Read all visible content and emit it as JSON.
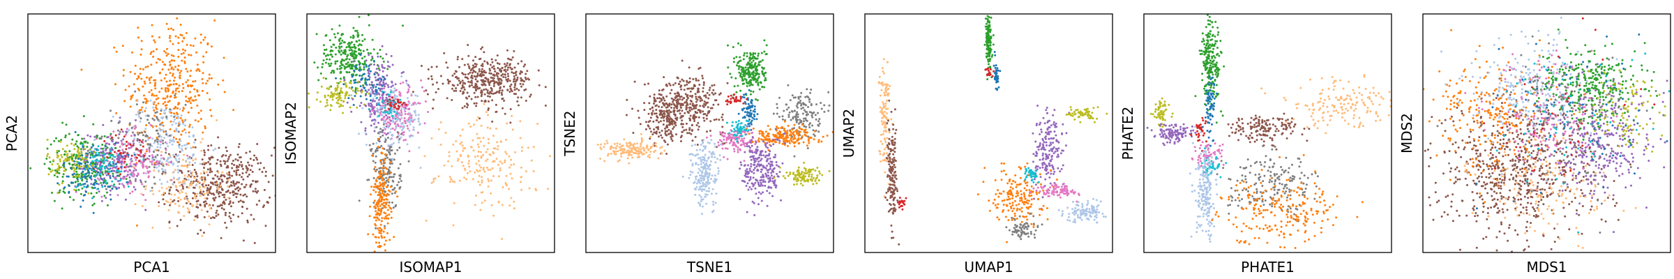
{
  "chart_data": [
    {
      "type": "scatter",
      "xlabel": "PCA1",
      "ylabel": "PCA2",
      "xlim": [
        0,
        1
      ],
      "ylim": [
        0,
        1
      ],
      "grid": false,
      "ticks": false,
      "clusters": [
        {
          "color": "#ff7f0e",
          "x": 0.58,
          "y": 0.7,
          "sx": 0.09,
          "sy": 0.14,
          "n": 360
        },
        {
          "color": "#8c564b",
          "x": 0.78,
          "y": 0.28,
          "sx": 0.1,
          "sy": 0.08,
          "n": 420
        },
        {
          "color": "#ffbb78",
          "x": 0.63,
          "y": 0.28,
          "sx": 0.08,
          "sy": 0.08,
          "n": 140
        },
        {
          "color": "#aec7e8",
          "x": 0.55,
          "y": 0.45,
          "sx": 0.09,
          "sy": 0.09,
          "n": 200
        },
        {
          "color": "#7f7f7f",
          "x": 0.48,
          "y": 0.48,
          "sx": 0.08,
          "sy": 0.09,
          "n": 120
        },
        {
          "color": "#e377c2",
          "x": 0.42,
          "y": 0.38,
          "sx": 0.07,
          "sy": 0.06,
          "n": 150
        },
        {
          "color": "#9467bd",
          "x": 0.33,
          "y": 0.38,
          "sx": 0.07,
          "sy": 0.07,
          "n": 200
        },
        {
          "color": "#2ca02c",
          "x": 0.22,
          "y": 0.37,
          "sx": 0.07,
          "sy": 0.07,
          "n": 220
        },
        {
          "color": "#bcbd22",
          "x": 0.18,
          "y": 0.38,
          "sx": 0.05,
          "sy": 0.05,
          "n": 110
        },
        {
          "color": "#1f77b4",
          "x": 0.26,
          "y": 0.34,
          "sx": 0.06,
          "sy": 0.06,
          "n": 110
        },
        {
          "color": "#17becf",
          "x": 0.3,
          "y": 0.36,
          "sx": 0.06,
          "sy": 0.05,
          "n": 80
        },
        {
          "color": "#d62728",
          "x": 0.4,
          "y": 0.42,
          "sx": 0.05,
          "sy": 0.04,
          "n": 40
        }
      ]
    },
    {
      "type": "scatter",
      "xlabel": "ISOMAP1",
      "ylabel": "ISOMAP2",
      "xlim": [
        0,
        1
      ],
      "ylim": [
        0,
        1
      ],
      "grid": false,
      "ticks": false,
      "clusters": [
        {
          "color": "#2ca02c",
          "x": 0.17,
          "y": 0.82,
          "sx": 0.06,
          "sy": 0.06,
          "n": 260
        },
        {
          "color": "#bcbd22",
          "x": 0.13,
          "y": 0.66,
          "sx": 0.04,
          "sy": 0.03,
          "n": 100
        },
        {
          "color": "#9467bd",
          "x": 0.29,
          "y": 0.66,
          "sx": 0.05,
          "sy": 0.08,
          "n": 200
        },
        {
          "color": "#e377c2",
          "x": 0.37,
          "y": 0.58,
          "sx": 0.05,
          "sy": 0.05,
          "n": 150
        },
        {
          "color": "#aec7e8",
          "x": 0.36,
          "y": 0.56,
          "sx": 0.06,
          "sy": 0.06,
          "n": 140
        },
        {
          "color": "#8c564b",
          "x": 0.73,
          "y": 0.72,
          "sx": 0.09,
          "sy": 0.05,
          "n": 400
        },
        {
          "color": "#ffbb78",
          "x": 0.72,
          "y": 0.38,
          "sx": 0.1,
          "sy": 0.1,
          "n": 200
        },
        {
          "color": "#7f7f7f",
          "x": 0.32,
          "y": 0.35,
          "sx": 0.03,
          "sy": 0.09,
          "n": 170
        },
        {
          "color": "#ff7f0e",
          "x": 0.3,
          "y": 0.2,
          "sx": 0.02,
          "sy": 0.1,
          "n": 200
        },
        {
          "color": "#1f77b4",
          "x": 0.24,
          "y": 0.72,
          "sx": 0.04,
          "sy": 0.04,
          "n": 60
        },
        {
          "color": "#17becf",
          "x": 0.33,
          "y": 0.62,
          "sx": 0.03,
          "sy": 0.03,
          "n": 40
        },
        {
          "color": "#d62728",
          "x": 0.36,
          "y": 0.62,
          "sx": 0.02,
          "sy": 0.02,
          "n": 25
        }
      ]
    },
    {
      "type": "scatter",
      "xlabel": "TSNE1",
      "ylabel": "TSNE2",
      "xlim": [
        0,
        1
      ],
      "ylim": [
        0,
        1
      ],
      "grid": false,
      "ticks": false,
      "clusters": [
        {
          "color": "#8c564b",
          "x": 0.4,
          "y": 0.62,
          "sx": 0.08,
          "sy": 0.06,
          "n": 380
        },
        {
          "color": "#8c564b",
          "x": 0.32,
          "y": 0.55,
          "sx": 0.04,
          "sy": 0.05,
          "n": 120
        },
        {
          "color": "#ffbb78",
          "x": 0.18,
          "y": 0.43,
          "sx": 0.06,
          "sy": 0.02,
          "n": 160
        },
        {
          "color": "#2ca02c",
          "x": 0.67,
          "y": 0.76,
          "sx": 0.03,
          "sy": 0.05,
          "n": 220
        },
        {
          "color": "#1f77b4",
          "x": 0.66,
          "y": 0.59,
          "sx": 0.015,
          "sy": 0.04,
          "n": 70
        },
        {
          "color": "#d62728",
          "x": 0.6,
          "y": 0.64,
          "sx": 0.02,
          "sy": 0.01,
          "n": 30
        },
        {
          "color": "#7f7f7f",
          "x": 0.87,
          "y": 0.58,
          "sx": 0.04,
          "sy": 0.05,
          "n": 150
        },
        {
          "color": "#ff7f0e",
          "x": 0.79,
          "y": 0.49,
          "sx": 0.07,
          "sy": 0.02,
          "n": 200
        },
        {
          "color": "#e377c2",
          "x": 0.6,
          "y": 0.47,
          "sx": 0.04,
          "sy": 0.025,
          "n": 120
        },
        {
          "color": "#17becf",
          "x": 0.62,
          "y": 0.52,
          "sx": 0.02,
          "sy": 0.02,
          "n": 50
        },
        {
          "color": "#aec7e8",
          "x": 0.48,
          "y": 0.33,
          "sx": 0.03,
          "sy": 0.07,
          "n": 200
        },
        {
          "color": "#9467bd",
          "x": 0.71,
          "y": 0.35,
          "sx": 0.04,
          "sy": 0.07,
          "n": 240
        },
        {
          "color": "#bcbd22",
          "x": 0.88,
          "y": 0.32,
          "sx": 0.04,
          "sy": 0.02,
          "n": 100
        }
      ]
    },
    {
      "type": "scatter",
      "xlabel": "UMAP1",
      "ylabel": "UMAP2",
      "xlim": [
        0,
        1
      ],
      "ylim": [
        0,
        1
      ],
      "grid": false,
      "ticks": false,
      "clusters": [
        {
          "color": "#2ca02c",
          "x": 0.5,
          "y": 0.88,
          "sx": 0.006,
          "sy": 0.06,
          "n": 150
        },
        {
          "color": "#1f77b4",
          "x": 0.53,
          "y": 0.74,
          "sx": 0.005,
          "sy": 0.03,
          "n": 40
        },
        {
          "color": "#d62728",
          "x": 0.5,
          "y": 0.76,
          "sx": 0.006,
          "sy": 0.01,
          "n": 20
        },
        {
          "color": "#ffbb78",
          "x": 0.08,
          "y": 0.58,
          "sx": 0.01,
          "sy": 0.12,
          "n": 110
        },
        {
          "color": "#8c564b",
          "x": 0.11,
          "y": 0.32,
          "sx": 0.01,
          "sy": 0.1,
          "n": 160
        },
        {
          "color": "#d62728",
          "x": 0.15,
          "y": 0.2,
          "sx": 0.01,
          "sy": 0.01,
          "n": 20
        },
        {
          "color": "#9467bd",
          "x": 0.74,
          "y": 0.43,
          "sx": 0.03,
          "sy": 0.08,
          "n": 180
        },
        {
          "color": "#bcbd22",
          "x": 0.88,
          "y": 0.58,
          "sx": 0.03,
          "sy": 0.015,
          "n": 60
        },
        {
          "color": "#ff7f0e",
          "x": 0.62,
          "y": 0.24,
          "sx": 0.05,
          "sy": 0.06,
          "n": 180
        },
        {
          "color": "#7f7f7f",
          "x": 0.64,
          "y": 0.1,
          "sx": 0.03,
          "sy": 0.02,
          "n": 70
        },
        {
          "color": "#e377c2",
          "x": 0.78,
          "y": 0.26,
          "sx": 0.04,
          "sy": 0.015,
          "n": 80
        },
        {
          "color": "#aec7e8",
          "x": 0.89,
          "y": 0.17,
          "sx": 0.04,
          "sy": 0.02,
          "n": 110
        },
        {
          "color": "#17becf",
          "x": 0.67,
          "y": 0.33,
          "sx": 0.02,
          "sy": 0.02,
          "n": 40
        }
      ]
    },
    {
      "type": "scatter",
      "xlabel": "PHATE1",
      "ylabel": "PHATE2",
      "xlim": [
        0,
        1
      ],
      "ylim": [
        0,
        1
      ],
      "grid": false,
      "ticks": false,
      "clusters": [
        {
          "color": "#2ca02c",
          "x": 0.27,
          "y": 0.8,
          "sx": 0.02,
          "sy": 0.09,
          "n": 220
        },
        {
          "color": "#1f77b4",
          "x": 0.27,
          "y": 0.62,
          "sx": 0.01,
          "sy": 0.06,
          "n": 70
        },
        {
          "color": "#bcbd22",
          "x": 0.07,
          "y": 0.58,
          "sx": 0.015,
          "sy": 0.03,
          "n": 60
        },
        {
          "color": "#9467bd",
          "x": 0.12,
          "y": 0.5,
          "sx": 0.04,
          "sy": 0.02,
          "n": 110
        },
        {
          "color": "#8c564b",
          "x": 0.48,
          "y": 0.52,
          "sx": 0.07,
          "sy": 0.03,
          "n": 150
        },
        {
          "color": "#ffbb78",
          "x": 0.8,
          "y": 0.62,
          "sx": 0.12,
          "sy": 0.05,
          "n": 160
        },
        {
          "color": "#e377c2",
          "x": 0.26,
          "y": 0.4,
          "sx": 0.03,
          "sy": 0.03,
          "n": 70
        },
        {
          "color": "#17becf",
          "x": 0.27,
          "y": 0.36,
          "sx": 0.02,
          "sy": 0.02,
          "n": 40
        },
        {
          "color": "#d62728",
          "x": 0.23,
          "y": 0.5,
          "sx": 0.015,
          "sy": 0.03,
          "n": 30
        },
        {
          "color": "#aec7e8",
          "x": 0.25,
          "y": 0.24,
          "sx": 0.02,
          "sy": 0.09,
          "n": 180
        },
        {
          "color": "#7f7f7f",
          "x": 0.52,
          "y": 0.28,
          "sx": 0.09,
          "sy": 0.06,
          "n": 180
        },
        {
          "color": "#ff7f0e",
          "x": 0.55,
          "y": 0.18,
          "sx": 0.12,
          "sy": 0.07,
          "n": 220
        }
      ]
    },
    {
      "type": "scatter",
      "xlabel": "MDS1",
      "ylabel": "MDS2",
      "xlim": [
        0,
        1
      ],
      "ylim": [
        0,
        1
      ],
      "grid": false,
      "ticks": false,
      "clusters": [
        {
          "color": "#8c564b",
          "x": 0.38,
          "y": 0.34,
          "sx": 0.16,
          "sy": 0.14,
          "n": 650
        },
        {
          "color": "#ff7f0e",
          "x": 0.3,
          "y": 0.58,
          "sx": 0.12,
          "sy": 0.12,
          "n": 260
        },
        {
          "color": "#aec7e8",
          "x": 0.45,
          "y": 0.7,
          "sx": 0.12,
          "sy": 0.1,
          "n": 220
        },
        {
          "color": "#2ca02c",
          "x": 0.68,
          "y": 0.7,
          "sx": 0.1,
          "sy": 0.08,
          "n": 300
        },
        {
          "color": "#9467bd",
          "x": 0.72,
          "y": 0.46,
          "sx": 0.11,
          "sy": 0.11,
          "n": 300
        },
        {
          "color": "#bcbd22",
          "x": 0.8,
          "y": 0.6,
          "sx": 0.07,
          "sy": 0.08,
          "n": 100
        },
        {
          "color": "#e377c2",
          "x": 0.52,
          "y": 0.58,
          "sx": 0.12,
          "sy": 0.12,
          "n": 150
        },
        {
          "color": "#7f7f7f",
          "x": 0.55,
          "y": 0.52,
          "sx": 0.14,
          "sy": 0.14,
          "n": 150
        },
        {
          "color": "#ffbb78",
          "x": 0.5,
          "y": 0.26,
          "sx": 0.14,
          "sy": 0.1,
          "n": 140
        },
        {
          "color": "#1f77b4",
          "x": 0.6,
          "y": 0.6,
          "sx": 0.15,
          "sy": 0.15,
          "n": 80
        },
        {
          "color": "#17becf",
          "x": 0.55,
          "y": 0.55,
          "sx": 0.16,
          "sy": 0.16,
          "n": 60
        },
        {
          "color": "#d62728",
          "x": 0.55,
          "y": 0.55,
          "sx": 0.16,
          "sy": 0.16,
          "n": 40
        }
      ]
    }
  ]
}
